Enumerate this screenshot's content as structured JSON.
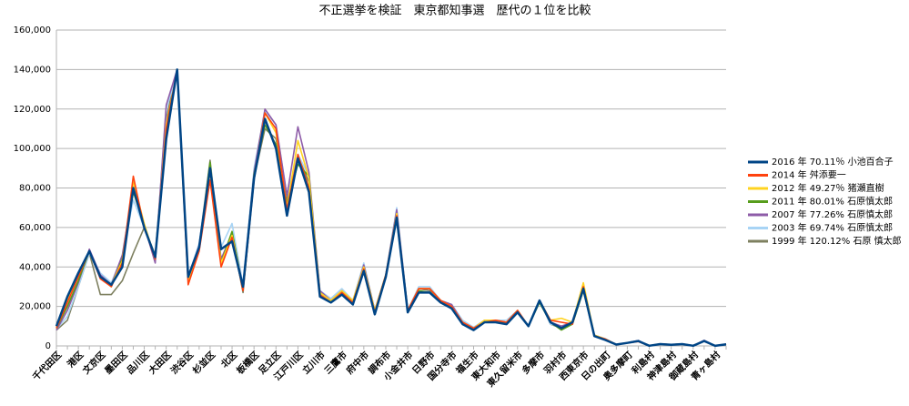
{
  "chart_data": {
    "type": "line",
    "title": "不正選挙を検証　東京都知事選　歴代の１位を比較",
    "categories": [
      "千代田区",
      null,
      "港区",
      null,
      "文京区",
      null,
      "墨田区",
      null,
      "品川区",
      null,
      "大田区",
      null,
      "渋谷区",
      null,
      "杉並区",
      null,
      "北区",
      null,
      "板橋区",
      null,
      "足立区",
      null,
      "江戸川区",
      null,
      "立川市",
      null,
      "三鷹市",
      null,
      "府中市",
      null,
      "調布市",
      null,
      "小金井市",
      null,
      "日野市",
      null,
      "国分寺市",
      null,
      "福生市",
      null,
      "東大和市",
      null,
      "東久留米市",
      null,
      "多摩市",
      null,
      "羽村市",
      null,
      "西東京市",
      null,
      "日の出町",
      null,
      "奥多摩町",
      null,
      "利島村",
      null,
      "神津島村",
      null,
      "御蔵島村",
      null,
      "青ヶ島村",
      null
    ],
    "ylim": [
      0,
      160000
    ],
    "yticks": [
      0,
      {
        "value": 20000,
        "label": "20,000"
      },
      {
        "value": 40000,
        "label": "40,000"
      },
      {
        "value": 60000,
        "label": "60,000"
      },
      {
        "value": 80000,
        "label": "80,000"
      },
      {
        "value": 100000,
        "label": "100,000"
      },
      {
        "value": 120000,
        "label": "120,000"
      },
      {
        "value": 140000,
        "label": "140,000"
      },
      {
        "value": 160000,
        "label": "160,000"
      }
    ],
    "grid": true,
    "legend": "right",
    "series": [
      {
        "name": "2016 年  70.11％ 小池百合子",
        "color": "#004586",
        "values": [
          10000,
          25000,
          37000,
          48000,
          35000,
          31000,
          40000,
          80000,
          60000,
          45000,
          105000,
          140000,
          35000,
          50000,
          90000,
          49000,
          53000,
          30000,
          85000,
          115000,
          100000,
          66000,
          95000,
          78000,
          25000,
          22000,
          26000,
          21000,
          38000,
          16000,
          35000,
          65000,
          17000,
          27000,
          27000,
          22000,
          19000,
          11000,
          8000,
          12000,
          12000,
          11000,
          17000,
          10000,
          23000,
          12000,
          9000,
          12000,
          29000,
          5000,
          3000,
          700,
          1500,
          2500,
          100,
          900,
          600,
          900,
          100,
          2500,
          50,
          800
        ]
      },
      {
        "name": "2014 年 舛添要一",
        "color": "#ff420e",
        "values": [
          9000,
          22000,
          35000,
          48000,
          34000,
          30000,
          42000,
          86000,
          60000,
          44000,
          110000,
          140000,
          31000,
          48000,
          84000,
          40000,
          55000,
          28000,
          84000,
          118000,
          110000,
          69000,
          97000,
          80000,
          26000,
          22000,
          27000,
          22000,
          39000,
          17000,
          36000,
          66000,
          18000,
          29000,
          29000,
          23000,
          20000,
          12000,
          9000,
          12000,
          13000,
          12000,
          18000,
          10000,
          23000,
          13000,
          12000,
          11000,
          30000,
          5000,
          3500,
          600,
          1500,
          2200,
          100,
          1000,
          700,
          1000,
          100,
          2500,
          60,
          900
        ]
      },
      {
        "name": "2012 年  49.27％ 猪瀬直樹",
        "color": "#ffd320",
        "values": [
          9500,
          23000,
          36000,
          48000,
          35000,
          31000,
          43000,
          83000,
          62000,
          44000,
          112000,
          139000,
          33000,
          50000,
          88000,
          42000,
          56000,
          29000,
          85000,
          118000,
          108000,
          70000,
          104000,
          85000,
          27000,
          23000,
          28000,
          23000,
          40000,
          18000,
          36000,
          67000,
          18000,
          29000,
          29000,
          23000,
          20000,
          12000,
          9000,
          13000,
          13000,
          12000,
          18000,
          10000,
          23000,
          13000,
          14000,
          12000,
          32000,
          5500,
          3500,
          700,
          1600,
          2400,
          100,
          1000,
          700,
          1000,
          100,
          2600,
          60,
          900
        ]
      },
      {
        "name": "2011 年  80.01% 石原慎太郎",
        "color": "#579d1c",
        "values": [
          9000,
          20000,
          33000,
          48000,
          35000,
          30000,
          44000,
          78000,
          61000,
          45000,
          108000,
          140000,
          34000,
          50000,
          93000,
          42000,
          58000,
          29000,
          87000,
          112000,
          102000,
          72000,
          92000,
          86000,
          26000,
          22000,
          27000,
          22000,
          38000,
          17000,
          36000,
          64000,
          17000,
          28000,
          27000,
          22000,
          19000,
          11000,
          9000,
          12000,
          12000,
          12000,
          17000,
          10000,
          22000,
          12000,
          8000,
          11000,
          28000,
          5000,
          3000,
          700,
          1500,
          2500,
          100,
          900,
          600,
          900,
          100,
          2500,
          50,
          800
        ]
      },
      {
        "name": "2007 年  77.26% 石原慎太郎",
        "color": "#8e5ca8",
        "values": [
          8000,
          18000,
          32000,
          49000,
          36000,
          31000,
          46000,
          80000,
          61000,
          42000,
          122000,
          140000,
          34000,
          51000,
          92000,
          44000,
          57000,
          30000,
          88000,
          120000,
          112000,
          76000,
          111000,
          88000,
          28000,
          23000,
          28000,
          22000,
          41000,
          18000,
          36000,
          69000,
          18000,
          29000,
          29000,
          23000,
          21000,
          12000,
          9000,
          13000,
          13000,
          12000,
          18000,
          10000,
          23000,
          12000,
          10000,
          12000,
          29000,
          5500,
          3500,
          800,
          1600,
          2700,
          100,
          1000,
          700,
          1000,
          100,
          2800,
          60,
          900
        ]
      },
      {
        "name": "2003 年 69.74% 石原慎太郎",
        "color": "#a8d4f5",
        "values": [
          8500,
          15000,
          30000,
          47000,
          37000,
          32000,
          45000,
          74000,
          60000,
          44000,
          120000,
          138000,
          35000,
          52000,
          92000,
          50000,
          62000,
          31000,
          90000,
          119000,
          112000,
          76000,
          97000,
          86000,
          28000,
          24000,
          29000,
          23000,
          42000,
          18000,
          36000,
          70000,
          18000,
          30000,
          30000,
          23000,
          21000,
          13000,
          9500,
          13000,
          13000,
          13000,
          18000,
          10000,
          23000,
          11000,
          10000,
          12000,
          29000,
          5500,
          3500,
          800,
          1600,
          2700,
          100,
          1000,
          700,
          1000,
          100,
          2800,
          60,
          900
        ]
      },
      {
        "name": "1999 年 120.12%  石原 慎太郎",
        "color": "#7e8060",
        "values": [
          8000,
          13000,
          30000,
          47000,
          26000,
          26000,
          33000,
          47000,
          60000,
          46000,
          115000,
          140000,
          35000,
          51000,
          94000,
          43000,
          56000,
          27000,
          85000,
          110000,
          105000,
          74000,
          96000,
          83000,
          27000,
          23000,
          27000,
          22000,
          41000,
          18000,
          35000,
          68000,
          17000,
          29000,
          28000,
          22000,
          20000,
          12000,
          9000,
          12000,
          12000,
          12000,
          17000,
          10000,
          23000,
          11000,
          9000,
          11000,
          29000,
          5000,
          3300,
          700,
          1500,
          2500,
          100,
          900,
          700,
          900,
          100,
          2500,
          50,
          800
        ]
      }
    ]
  }
}
